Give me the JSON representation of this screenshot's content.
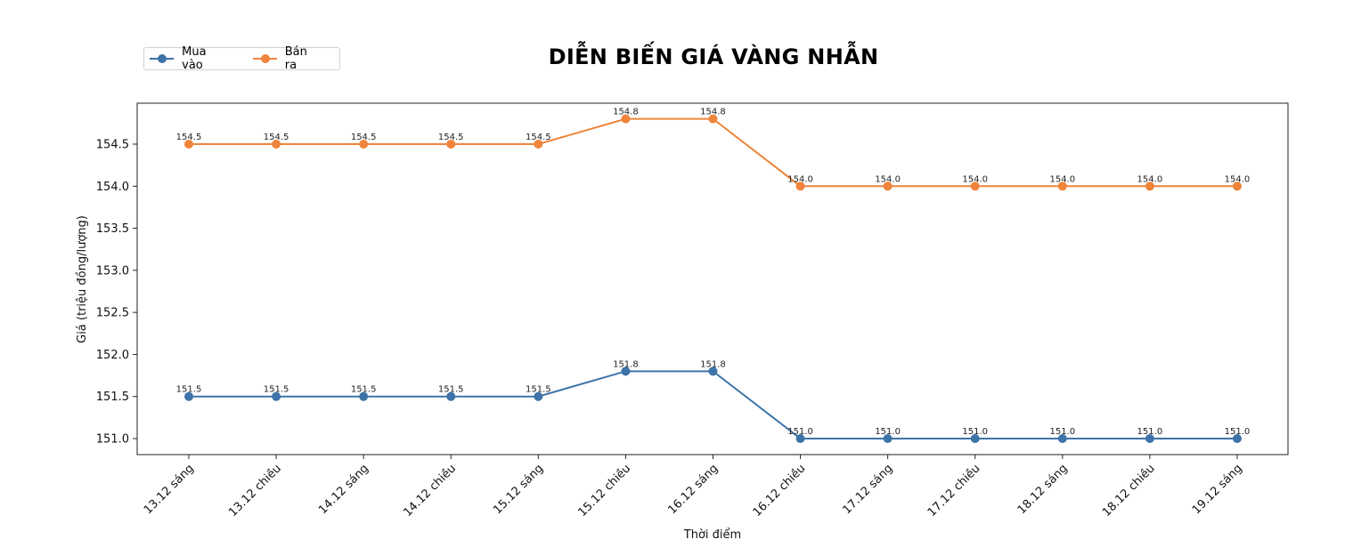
{
  "chart_data": {
    "type": "line",
    "title": "DIỄN BIẾN GIÁ VÀNG NHẪN",
    "xlabel": "Thời điểm",
    "ylabel": "Giá (triệu đồng/lượng)",
    "categories": [
      "13.12 sáng",
      "13.12 chiều",
      "14.12 sáng",
      "14.12 chiều",
      "15.12 sáng",
      "15.12 chiều",
      "16.12 sáng",
      "16.12 chiều",
      "17.12 sáng",
      "17.12 chiều",
      "18.12 sáng",
      "18.12 chiều",
      "19.12 sáng"
    ],
    "series": [
      {
        "name": "Mua vào",
        "color": "#3d73a8",
        "values": [
          151.5,
          151.5,
          151.5,
          151.5,
          151.5,
          151.8,
          151.8,
          151.0,
          151.0,
          151.0,
          151.0,
          151.0,
          151.0
        ]
      },
      {
        "name": "Bán ra",
        "color": "#f0843a",
        "values": [
          154.5,
          154.5,
          154.5,
          154.5,
          154.5,
          154.8,
          154.8,
          154.0,
          154.0,
          154.0,
          154.0,
          154.0,
          154.0
        ]
      }
    ],
    "yticks": [
      151.0,
      151.5,
      152.0,
      152.5,
      153.0,
      153.5,
      154.0,
      154.5
    ],
    "ylim": [
      150.81,
      154.99
    ],
    "grid": false,
    "legend_position": "upper left, outside above plot",
    "data_labels": true
  },
  "legend": {
    "items": [
      {
        "label": "Mua vào",
        "color": "#3d73a8"
      },
      {
        "label": "Bán ra",
        "color": "#f0843a"
      }
    ]
  }
}
